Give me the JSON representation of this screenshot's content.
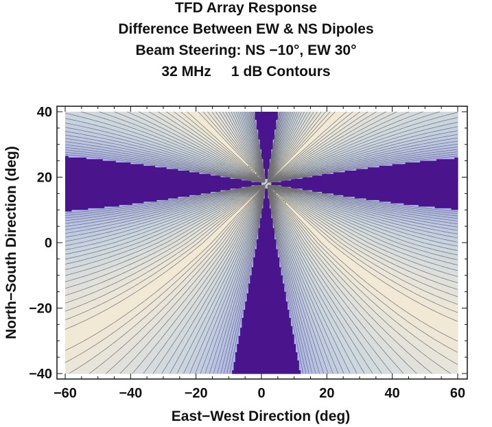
{
  "chart_data": {
    "type": "contour",
    "title_lines": [
      "TFD Array Response",
      "Difference Between EW & NS Dipoles",
      "Beam Steering: NS −10°, EW 30°",
      "32 MHz     1 dB Contours"
    ],
    "xlabel": "East−West Direction (deg)",
    "ylabel": "North−South Direction (deg)",
    "xlim": [
      -60,
      60
    ],
    "ylim": [
      -40,
      40
    ],
    "xticks": [
      -60,
      -40,
      -20,
      0,
      20,
      40,
      60
    ],
    "xtick_labels": [
      "−60",
      "−40",
      "−20",
      "0",
      "20",
      "40",
      "60"
    ],
    "yticks": [
      -40,
      -20,
      0,
      20,
      40
    ],
    "ytick_labels": [
      "−40",
      "−20",
      "0",
      "20",
      "40"
    ],
    "contour_step_db": 1,
    "singular_point": {
      "x": 1.5,
      "y": 18
    },
    "colors": {
      "low": "#f3ead6",
      "mid": "#c9d5e1",
      "high": "#a9b3ea",
      "saturated": "#4a148c",
      "contour": "#6e6e6e"
    }
  }
}
